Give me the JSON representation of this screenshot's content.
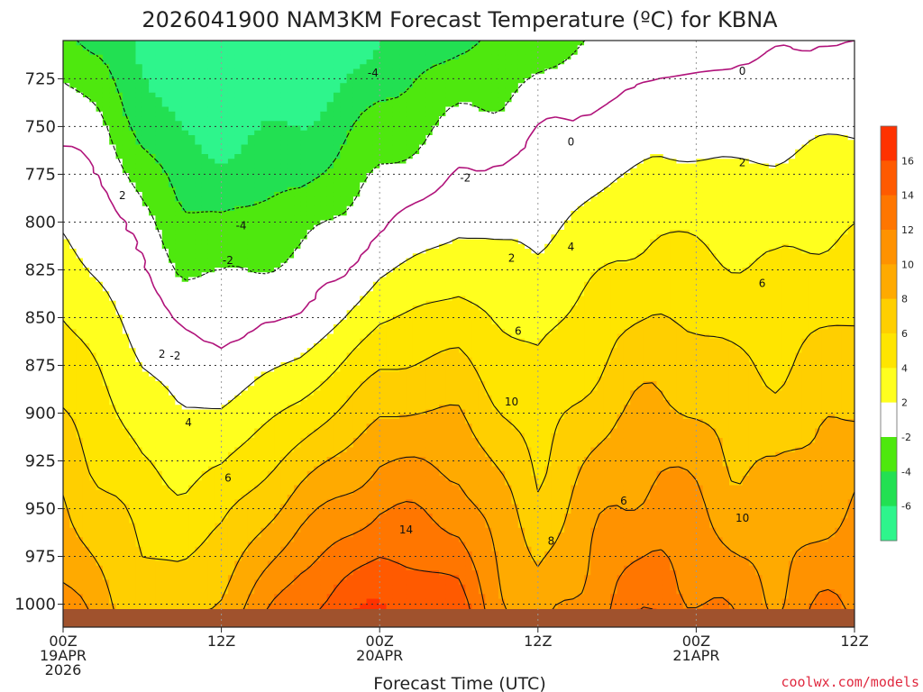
{
  "chart_data": {
    "type": "heatmap",
    "title": "2026041900 NAM3KM Forecast Temperature (ºC) for KBNA",
    "xlabel": "Forecast Time (UTC)",
    "ylabel": "",
    "x_ticks": [
      {
        "hours": 0,
        "line1": "00Z",
        "line2": "19APR",
        "line3": "2026"
      },
      {
        "hours": 12,
        "line1": "12Z",
        "line2": "",
        "line3": ""
      },
      {
        "hours": 24,
        "line1": "00Z",
        "line2": "20APR",
        "line3": ""
      },
      {
        "hours": 36,
        "line1": "12Z",
        "line2": "",
        "line3": ""
      },
      {
        "hours": 48,
        "line1": "00Z",
        "line2": "21APR",
        "line3": ""
      },
      {
        "hours": 60,
        "line1": "12Z",
        "line2": "",
        "line3": ""
      }
    ],
    "xlim_hours": [
      0,
      60
    ],
    "y_ticks": [
      725,
      750,
      775,
      800,
      825,
      850,
      875,
      900,
      925,
      950,
      975,
      1000
    ],
    "ylim_hPa": [
      1012,
      705
    ],
    "y_scale": "pressure (hPa), decreasing upward",
    "grid": "dotted",
    "colorbar": {
      "levels": [
        -8,
        -6,
        -4,
        -2,
        2,
        4,
        6,
        8,
        10,
        12,
        14,
        16,
        18
      ],
      "labels": [
        "-6",
        "-4",
        "-2",
        "2",
        "4",
        "6",
        "8",
        "10",
        "12",
        "14",
        "16"
      ],
      "colors": [
        "#2ef58c",
        "#22e052",
        "#4ee80e",
        "#ffffff",
        "#ffff1e",
        "#ffe500",
        "#ffcf00",
        "#ffaa00",
        "#ff9200",
        "#ff7600",
        "#ff5a00",
        "#ff3200"
      ],
      "placement": "right"
    },
    "contour_labels": [
      "-4",
      "-4",
      "-2",
      "-2",
      "-2",
      "0",
      "0",
      "2",
      "2",
      "2",
      "2",
      "4",
      "4",
      "6",
      "6",
      "6",
      "6",
      "8",
      "10",
      "10",
      "14"
    ],
    "ground_color": "#a0522d",
    "temperature_profile": {
      "hours": [
        0,
        3,
        6,
        9,
        12,
        15,
        18,
        21,
        24,
        27,
        30,
        33,
        36,
        39,
        42,
        45,
        48,
        51,
        54,
        57,
        60
      ],
      "base_temp_c": [
        10.5,
        8.5,
        7.0,
        7.0,
        8.5,
        11.0,
        13.5,
        15.0,
        16.0,
        15.5,
        14.5,
        11.0,
        8.5,
        10.5,
        12.5,
        13.5,
        12.5,
        11.0,
        10.5,
        11.5,
        12.0
      ],
      "freezing_level_hPa": [
        760,
        780,
        822,
        858,
        865,
        855,
        848,
        830,
        805,
        790,
        776,
        770,
        755,
        745,
        735,
        725,
        722,
        718,
        713,
        708,
        705
      ]
    }
  },
  "credit": "coolwx.com/models"
}
